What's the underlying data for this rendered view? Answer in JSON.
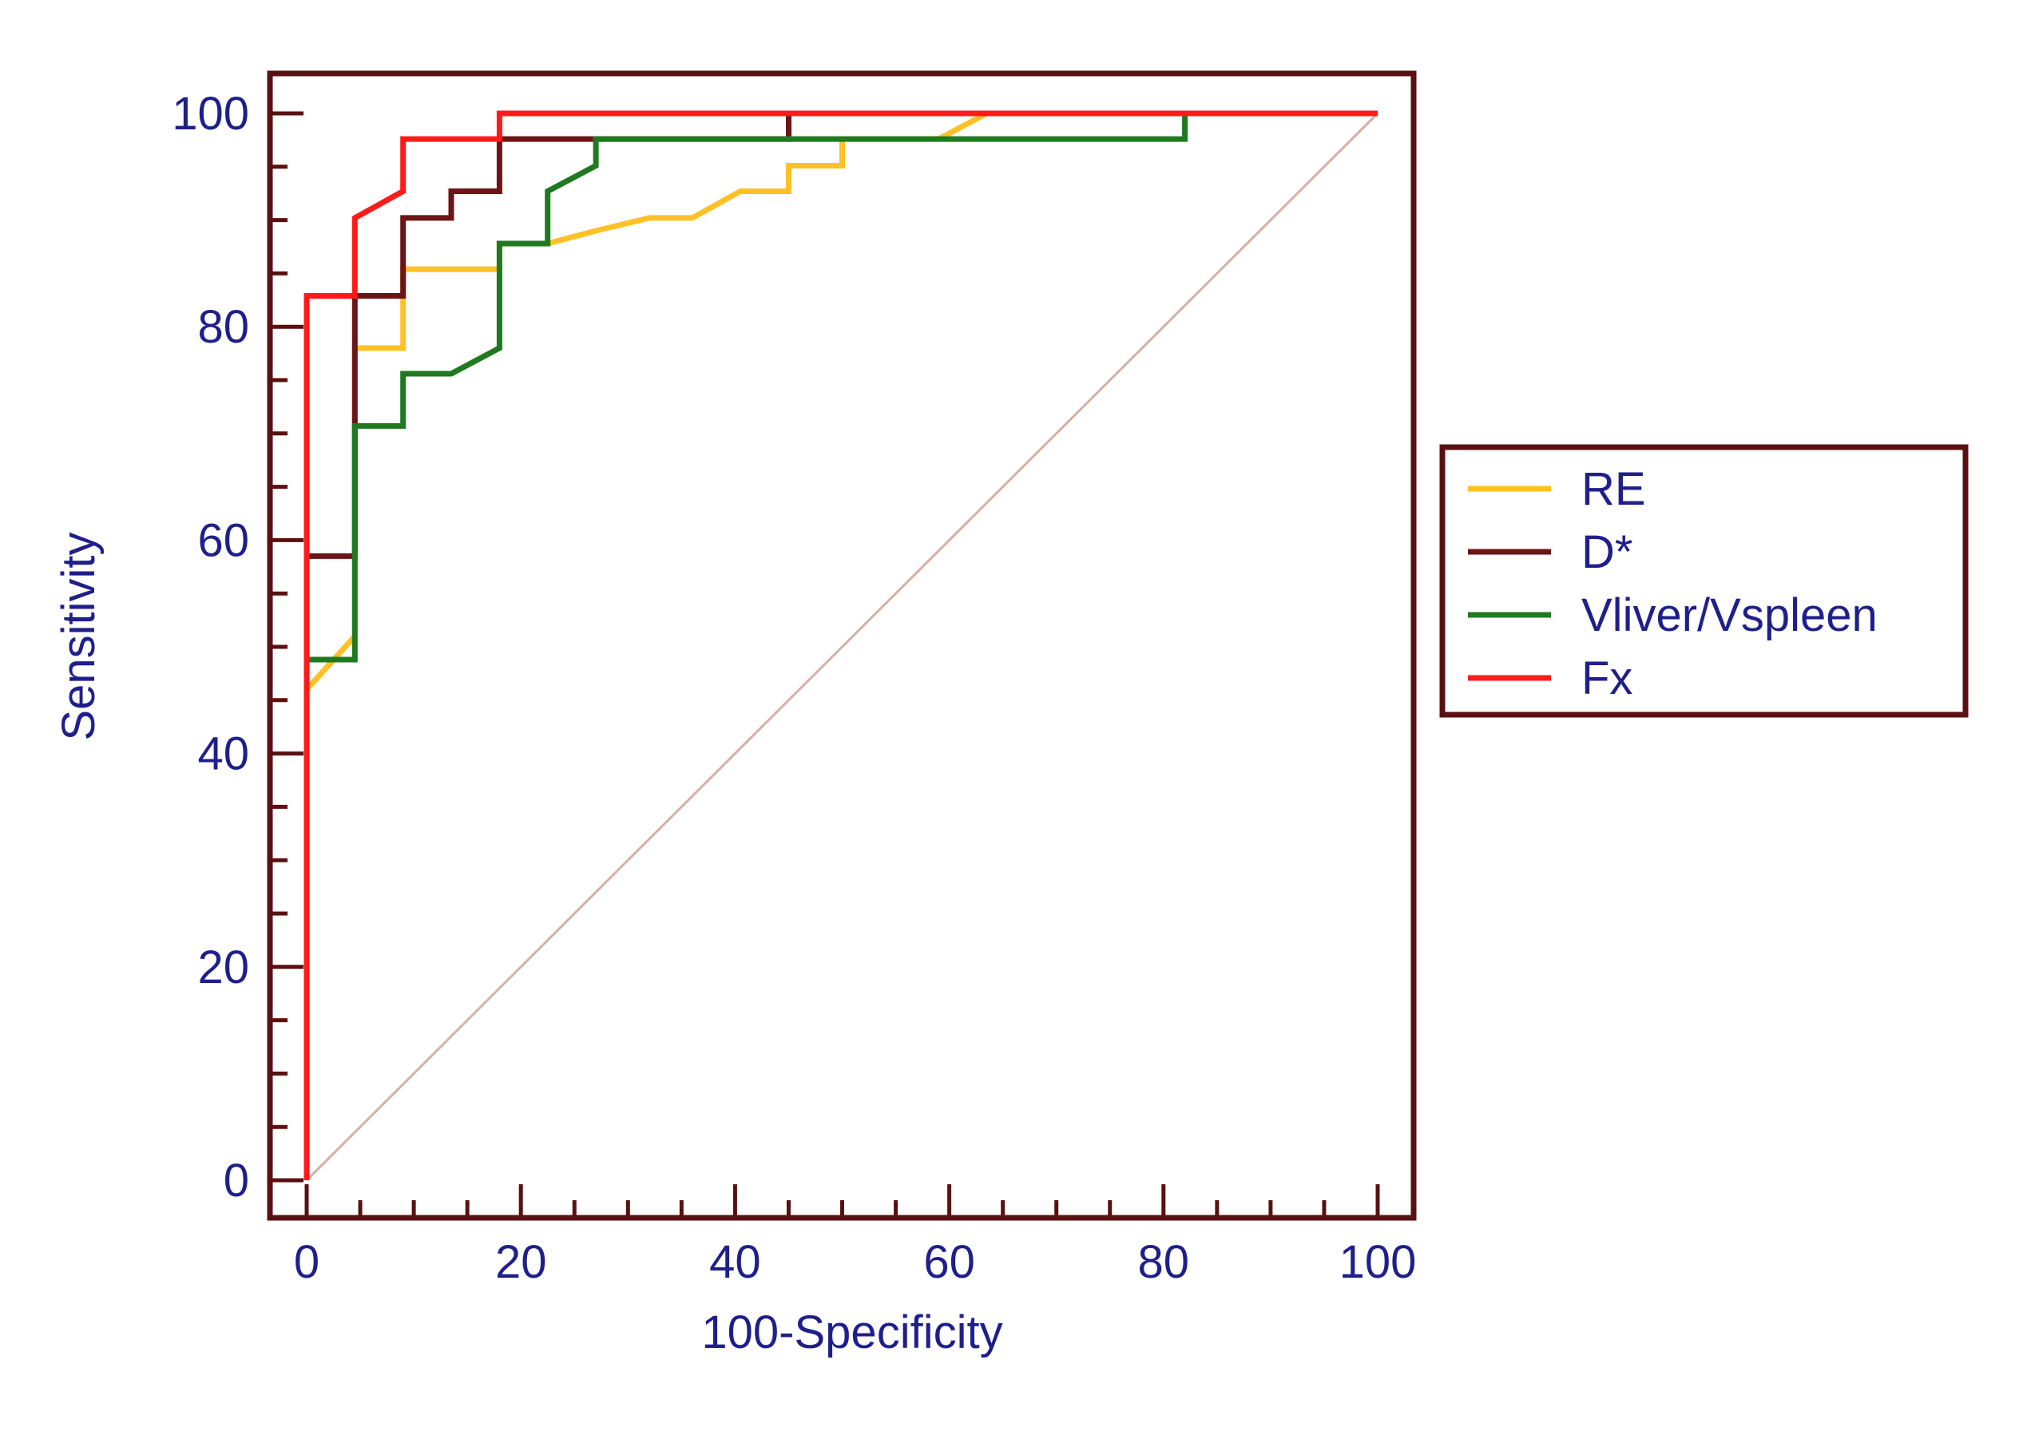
{
  "colors": {
    "frame": "#5a1010",
    "text": "#1f1f8c",
    "diagonal": "#d4b0a8"
  },
  "chart_data": {
    "type": "line",
    "xlabel": "100-Specificity",
    "ylabel": "Sensitivity",
    "xlim": [
      0,
      100
    ],
    "ylim": [
      0,
      100
    ],
    "x_ticks": [
      "0",
      "20",
      "40",
      "60",
      "80",
      "100"
    ],
    "y_ticks": [
      "0",
      "20",
      "40",
      "60",
      "80",
      "100"
    ],
    "grid": false,
    "legend_position": "right",
    "reference_line": {
      "x": [
        0,
        100
      ],
      "y": [
        0,
        100
      ]
    },
    "series": [
      {
        "name": "RE",
        "color": "#ffc125",
        "x": [
          0,
          0,
          4.5,
          4.5,
          9,
          9,
          18,
          18,
          22.5,
          27,
          32,
          36,
          40.5,
          45,
          45,
          50,
          50,
          59,
          63.5,
          100
        ],
        "y": [
          0,
          46,
          51,
          78,
          78,
          85.4,
          85.4,
          87.8,
          87.8,
          89,
          90.2,
          90.2,
          92.7,
          92.7,
          95.1,
          95.1,
          97.6,
          97.6,
          100,
          100
        ]
      },
      {
        "name": "D*",
        "color": "#6e1416",
        "x": [
          0,
          0,
          4.5,
          4.5,
          9,
          9,
          13.5,
          13.5,
          18,
          18,
          45,
          45,
          100
        ],
        "y": [
          0,
          58.5,
          58.5,
          82.9,
          82.9,
          90.2,
          90.2,
          92.7,
          92.7,
          97.6,
          97.6,
          100,
          100
        ]
      },
      {
        "name": "Vliver/Vspleen",
        "color": "#1f7a1f",
        "x": [
          0,
          0,
          4.5,
          4.5,
          9,
          9,
          13.5,
          18,
          18,
          22.5,
          22.5,
          27,
          27,
          82,
          82,
          100
        ],
        "y": [
          0,
          48.8,
          48.8,
          70.7,
          70.7,
          75.6,
          75.6,
          78,
          87.8,
          87.8,
          92.7,
          95.1,
          97.6,
          97.6,
          100,
          100
        ]
      },
      {
        "name": "Fx",
        "color": "#ff1a1a",
        "x": [
          0,
          0,
          4.5,
          4.5,
          9,
          9,
          18,
          18,
          100
        ],
        "y": [
          0,
          82.9,
          82.9,
          90.2,
          92.7,
          97.6,
          97.6,
          100,
          100
        ]
      }
    ]
  }
}
